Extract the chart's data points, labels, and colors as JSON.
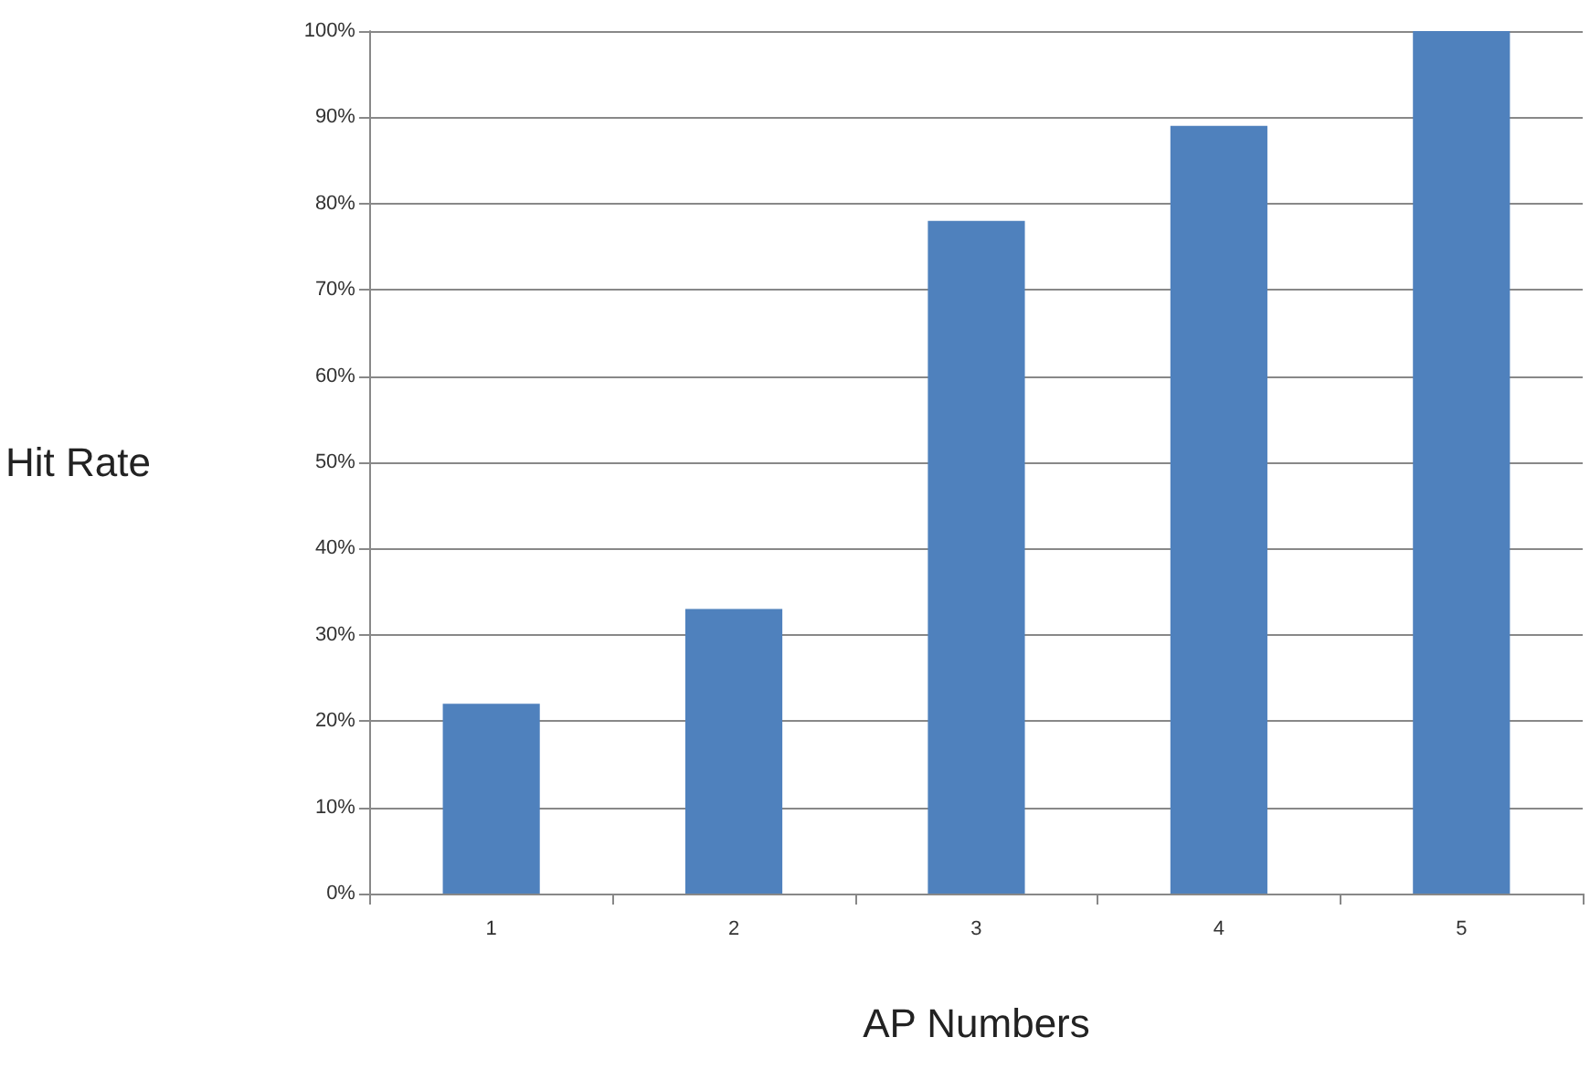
{
  "chart_data": {
    "type": "bar",
    "xlabel": "AP Numbers",
    "ylabel": "Hit Rate",
    "categories": [
      "1",
      "2",
      "3",
      "4",
      "5"
    ],
    "values": [
      22,
      33,
      78,
      89,
      100
    ],
    "color": "#4f81bd",
    "ylim": [
      0,
      100
    ],
    "yticks": [
      {
        "value": 0,
        "label": "0%"
      },
      {
        "value": 10,
        "label": "10%"
      },
      {
        "value": 20,
        "label": "20%"
      },
      {
        "value": 30,
        "label": "30%"
      },
      {
        "value": 40,
        "label": "40%"
      },
      {
        "value": 50,
        "label": "50%"
      },
      {
        "value": 60,
        "label": "60%"
      },
      {
        "value": 70,
        "label": "70%"
      },
      {
        "value": 80,
        "label": "80%"
      },
      {
        "value": 90,
        "label": "90%"
      },
      {
        "value": 100,
        "label": "100%"
      }
    ],
    "grid": "y"
  }
}
